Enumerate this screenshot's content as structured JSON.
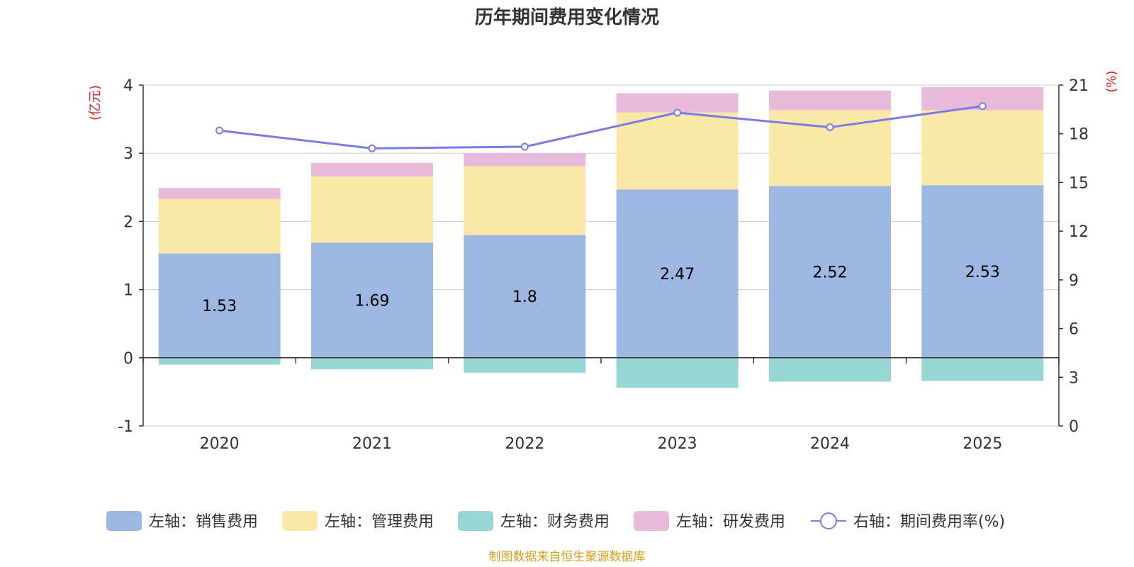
{
  "chart_data": {
    "type": "bar",
    "title": "历年期间费用变化情况",
    "categories": [
      "2020",
      "2021",
      "2022",
      "2023",
      "2024",
      "2025"
    ],
    "y_left": {
      "unit": "(亿元)",
      "range": [
        -1,
        4
      ],
      "ticks": [
        4,
        3,
        2,
        1,
        0,
        -1
      ]
    },
    "y_right": {
      "unit": "(%)",
      "range": [
        0,
        21
      ],
      "ticks": [
        21,
        18,
        15,
        12,
        9,
        6,
        3,
        0
      ]
    },
    "series": [
      {
        "name": "左轴：销售费用",
        "kind": "bar",
        "color": "#9bb7e2",
        "values": [
          1.53,
          1.69,
          1.8,
          2.47,
          2.52,
          2.53
        ]
      },
      {
        "name": "左轴：管理费用",
        "kind": "bar",
        "color": "#f9e8a8",
        "values": [
          0.8,
          0.97,
          1.01,
          1.13,
          1.11,
          1.1
        ]
      },
      {
        "name": "左轴：财务费用",
        "kind": "bar",
        "color": "#98d5d5",
        "values": [
          -0.1,
          -0.17,
          -0.22,
          -0.44,
          -0.35,
          -0.34
        ]
      },
      {
        "name": "左轴：研发费用",
        "kind": "bar",
        "color": "#e8bbdb",
        "values": [
          0.16,
          0.2,
          0.19,
          0.28,
          0.29,
          0.34
        ]
      },
      {
        "name": "右轴：期间费用率(%)",
        "kind": "line",
        "axis": "right",
        "color": "#7b7be6",
        "values": [
          18.2,
          17.1,
          17.2,
          19.3,
          18.4,
          19.7
        ]
      }
    ],
    "data_labels": [
      "1.53",
      "1.69",
      "1.8",
      "2.47",
      "2.52",
      "2.53"
    ],
    "legend_position": "bottom",
    "grid": true,
    "source": "制图数据来自恒生聚源数据库",
    "unit_color": "#e02020",
    "source_color": "#d4a017"
  }
}
